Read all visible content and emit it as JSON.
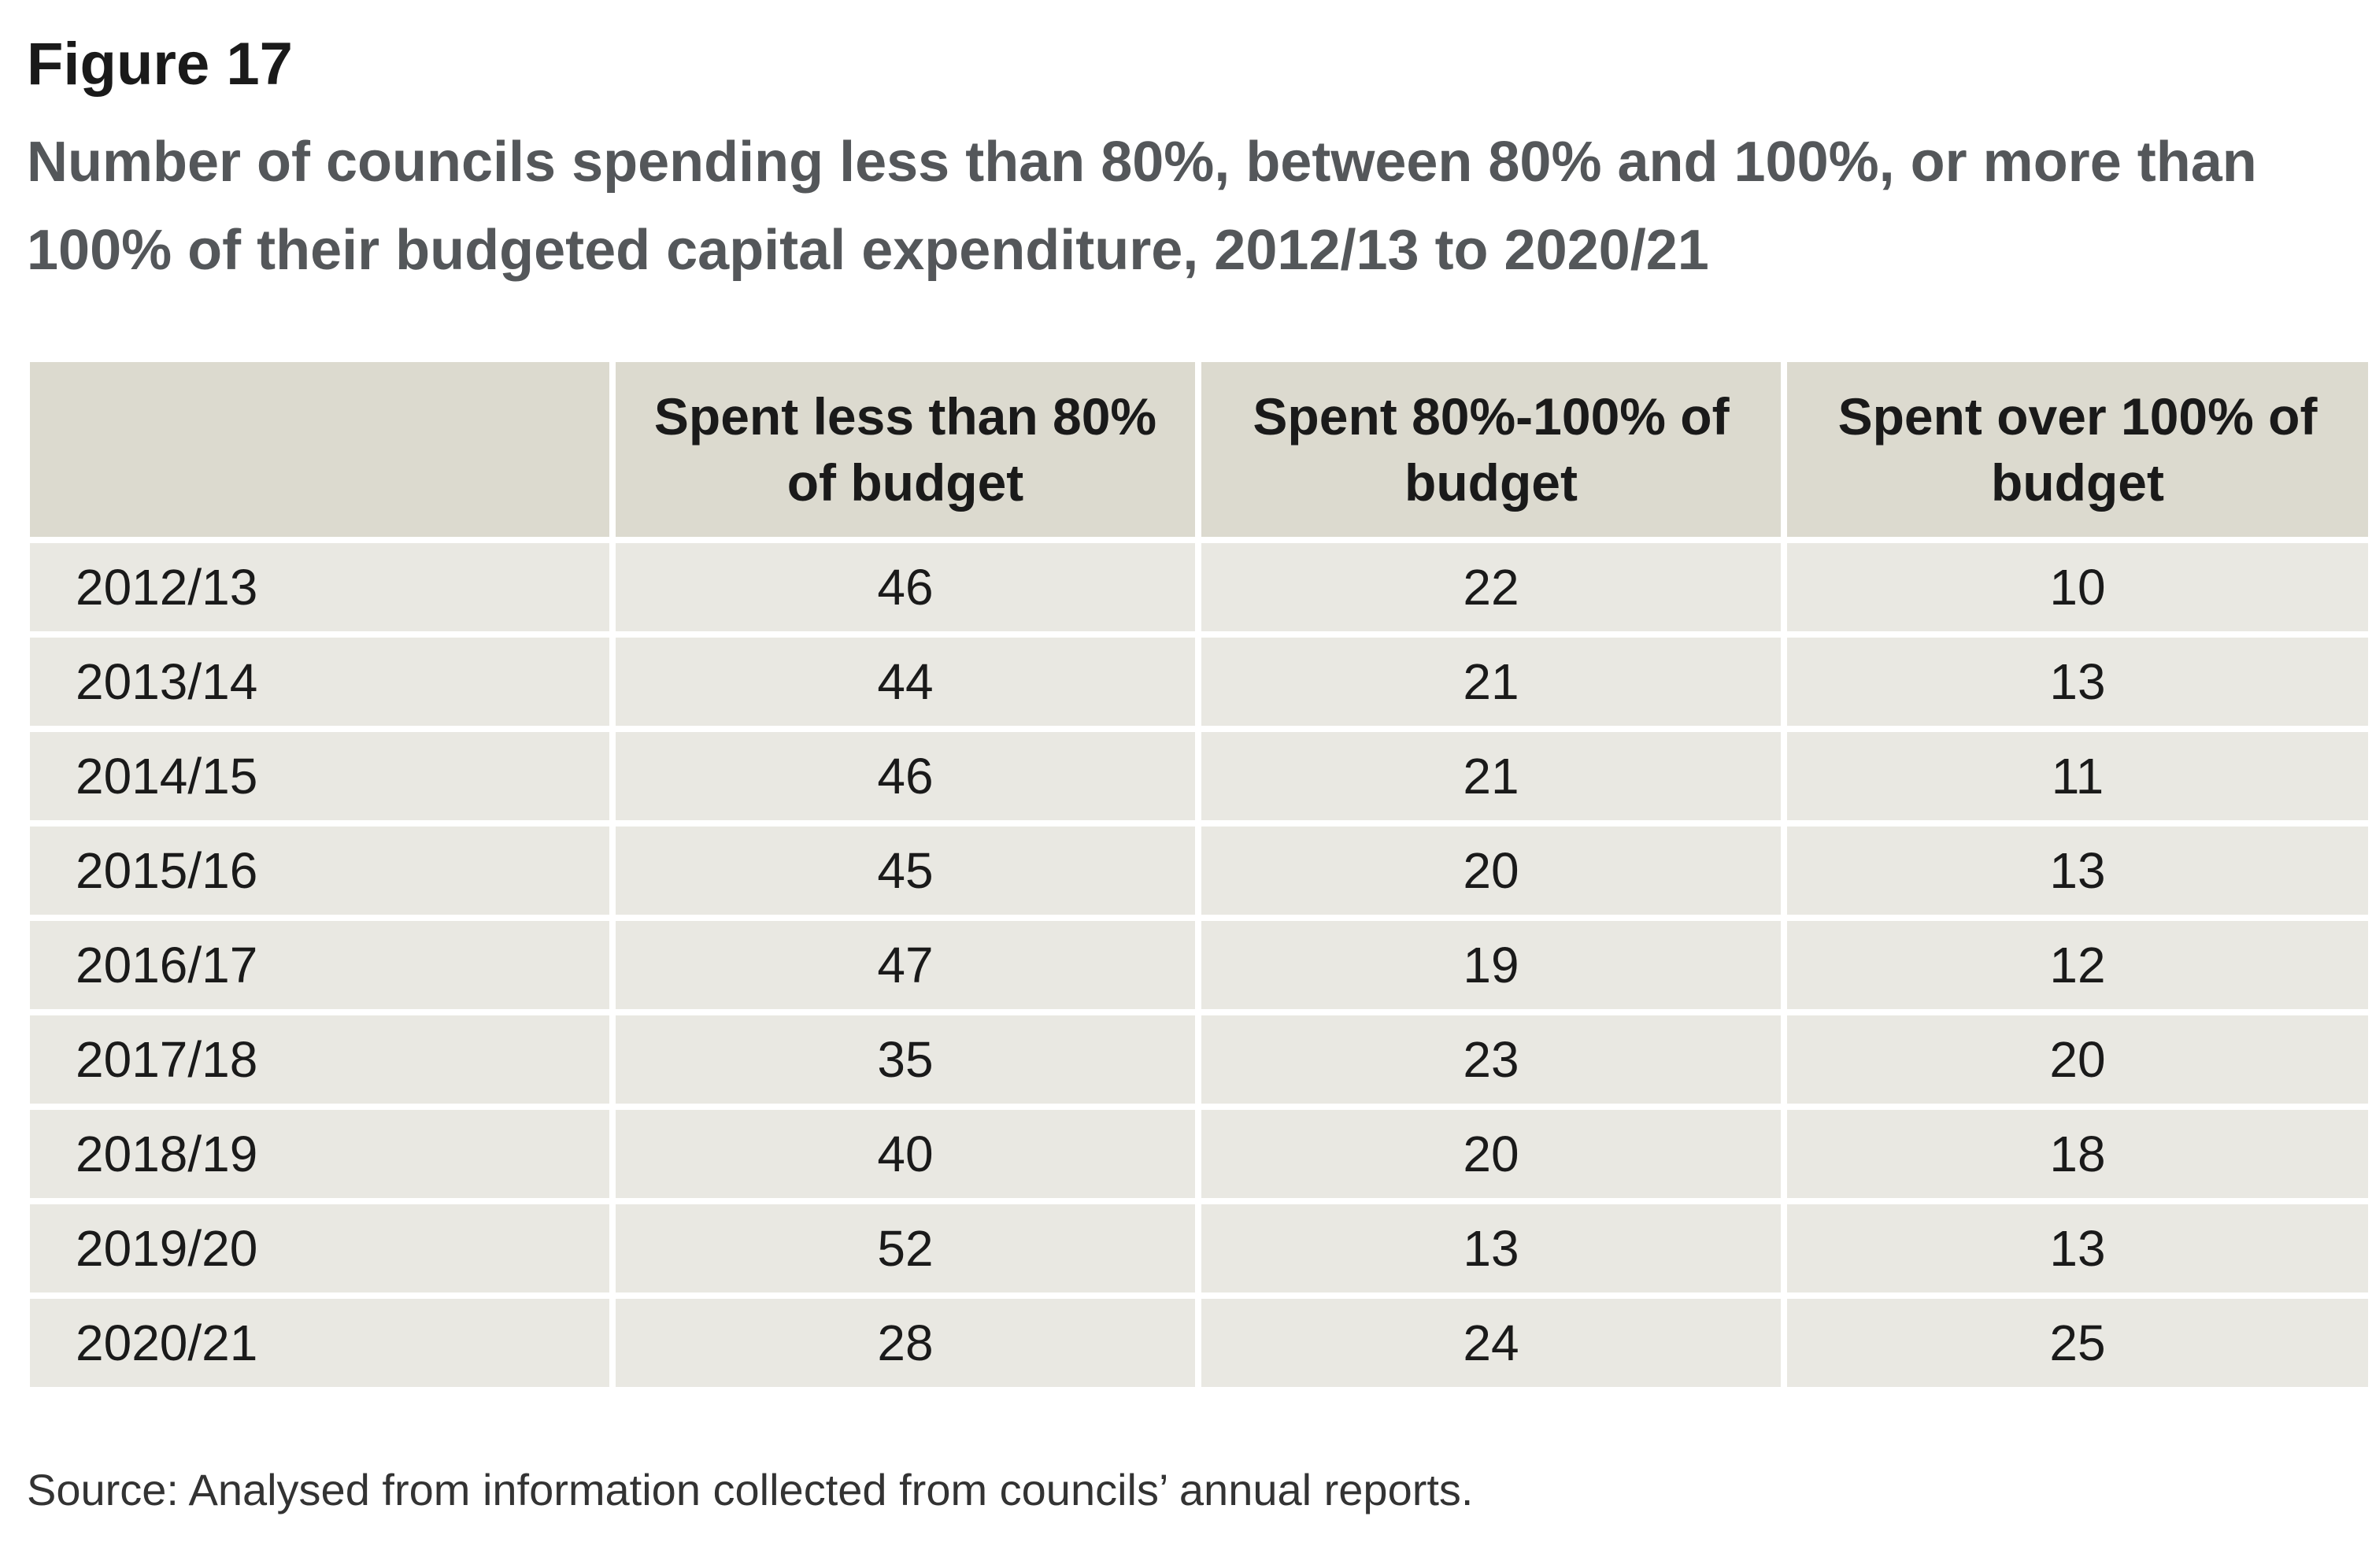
{
  "figure_label": "Figure 17",
  "figure_title": "Number of councils spending less than 80%, between 80% and 100%, or more than 100% of their budgeted capital expenditure, 2012/13 to 2020/21",
  "source": "Source: Analysed from information collected from councils’ annual reports.",
  "colors": {
    "header_bg": "#dcdacf",
    "row_bg": "#e9e8e2",
    "title_color": "#54575a"
  },
  "chart_data": {
    "type": "table",
    "title": "Number of councils spending less than 80%, between 80% and 100%, or more than 100% of their budgeted capital expenditure, 2012/13 to 2020/21",
    "columns": [
      "",
      "Spent less than 80% of budget",
      "Spent 80%-100% of budget",
      "Spent over 100% of budget"
    ],
    "rows": [
      {
        "year": "2012/13",
        "less_80": "46",
        "between_80_100": "22",
        "over_100": "10"
      },
      {
        "year": "2013/14",
        "less_80": "44",
        "between_80_100": "21",
        "over_100": "13"
      },
      {
        "year": "2014/15",
        "less_80": "46",
        "between_80_100": "21",
        "over_100": "11"
      },
      {
        "year": "2015/16",
        "less_80": "45",
        "between_80_100": "20",
        "over_100": "13"
      },
      {
        "year": "2016/17",
        "less_80": "47",
        "between_80_100": "19",
        "over_100": "12"
      },
      {
        "year": "2017/18",
        "less_80": "35",
        "between_80_100": "23",
        "over_100": "20"
      },
      {
        "year": "2018/19",
        "less_80": "40",
        "between_80_100": "20",
        "over_100": "18"
      },
      {
        "year": "2019/20",
        "less_80": "52",
        "between_80_100": "13",
        "over_100": "13"
      },
      {
        "year": "2020/21",
        "less_80": "28",
        "between_80_100": "24",
        "over_100": "25"
      }
    ]
  }
}
